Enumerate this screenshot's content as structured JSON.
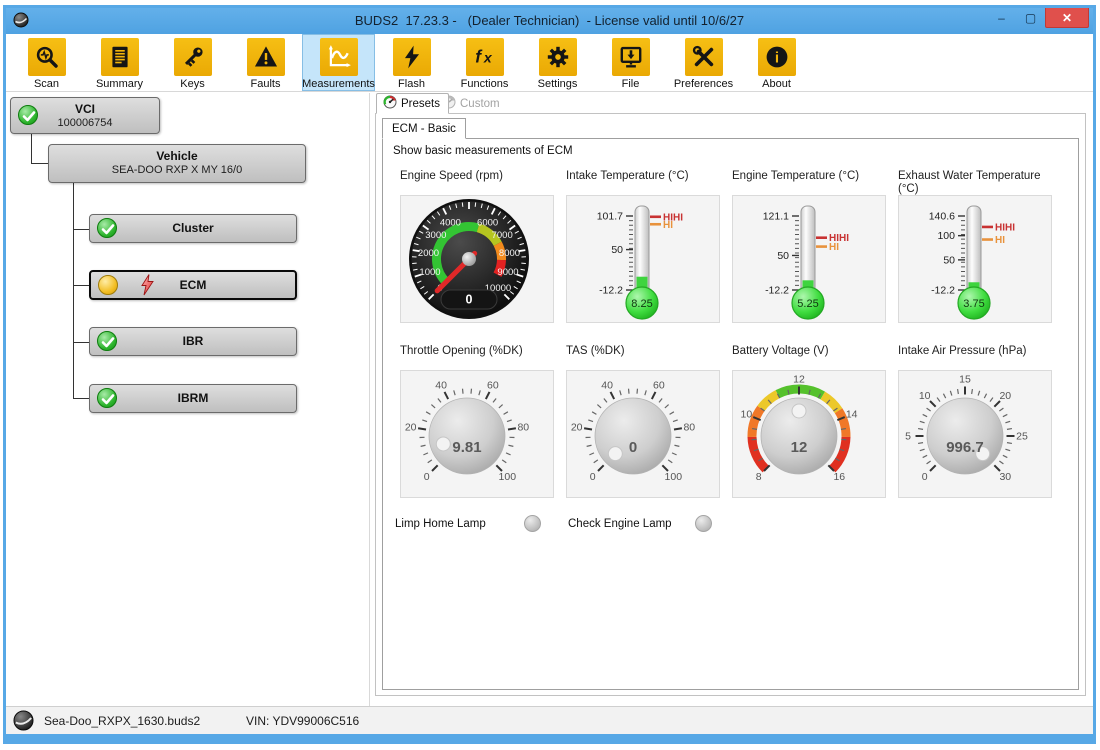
{
  "window": {
    "title": "BUDS2  17.23.3 -   (Dealer Technician)  - License valid until 10/6/27",
    "controls": {
      "minimize": "–",
      "maximize": "▢",
      "close": "✕"
    }
  },
  "toolbar": {
    "items": [
      {
        "label": "Scan",
        "icon": "scan-icon",
        "selected": false
      },
      {
        "label": "Summary",
        "icon": "summary-icon",
        "selected": false
      },
      {
        "label": "Keys",
        "icon": "keys-icon",
        "selected": false
      },
      {
        "label": "Faults",
        "icon": "faults-icon",
        "selected": false
      },
      {
        "label": "Measurements",
        "icon": "measurements-icon",
        "selected": true
      },
      {
        "label": "Flash",
        "icon": "flash-icon",
        "selected": false
      },
      {
        "label": "Functions",
        "icon": "functions-icon",
        "selected": false
      },
      {
        "label": "Settings",
        "icon": "settings-icon",
        "selected": false
      },
      {
        "label": "File",
        "icon": "file-icon",
        "selected": false
      },
      {
        "label": "Preferences",
        "icon": "preferences-icon",
        "selected": false
      },
      {
        "label": "About",
        "icon": "about-icon",
        "selected": false
      }
    ]
  },
  "tree": {
    "nodes": [
      {
        "title": "VCI",
        "subtitle": "100006754",
        "status": "ok"
      },
      {
        "title": "Vehicle",
        "subtitle": "SEA-DOO RXP X MY 16/0",
        "status": "none"
      },
      {
        "title": "Cluster",
        "status": "ok"
      },
      {
        "title": "ECM",
        "status": "warning-fault",
        "selected": true
      },
      {
        "title": "IBR",
        "status": "ok"
      },
      {
        "title": "IBRM",
        "status": "ok"
      }
    ]
  },
  "content": {
    "preset_tab": "Presets",
    "custom_tab": "Custom",
    "page_tab": "ECM - Basic",
    "description": "Show basic measurements of ECM",
    "lamps": [
      {
        "label": "Limp Home Lamp",
        "on": false
      },
      {
        "label": "Check Engine Lamp",
        "on": false
      }
    ]
  },
  "statusbar": {
    "file": "Sea-Doo_RXPX_1630.buds2",
    "vin": "VIN: YDV99006C516"
  },
  "colors": {
    "title_blue": "#57a8e6",
    "toolbar_yellow": "#f2b50a",
    "ok_green": "#2eb52e",
    "warn_yellow": "#f2bd22",
    "hihi_red": "#c83232",
    "hi_orange": "#e8923c"
  },
  "chart_data": [
    {
      "type": "dial",
      "title": "Engine Speed (rpm)",
      "value": 0,
      "display": "0",
      "min": 0,
      "max": 10000,
      "major_step": 1000,
      "minor_step": 250,
      "labels": [
        0,
        1000,
        2000,
        3000,
        4000,
        6000,
        7000,
        8000,
        9000,
        10000
      ],
      "arc": [
        {
          "from": 0,
          "to": 5600,
          "color": "#33c433"
        },
        {
          "from": 5600,
          "to": 7300,
          "color": "#b5c520"
        },
        {
          "from": 7300,
          "to": 8400,
          "color": "#f28a1c"
        },
        {
          "from": 8400,
          "to": 9400,
          "color": "#e32222"
        }
      ]
    },
    {
      "type": "thermometer",
      "title": "Intake Temperature (°C)",
      "value": 8.25,
      "display": "8.25",
      "min": -12.2,
      "max": 101.7,
      "labels": [
        {
          "v": 101.7,
          "t": "101.7"
        },
        {
          "v": 50,
          "t": "50"
        },
        {
          "v": -12.2,
          "t": "-12.2"
        }
      ],
      "markers": [
        {
          "label": "HIHI",
          "value": 100.5,
          "color": "#c83232"
        },
        {
          "label": "HI",
          "value": 89,
          "color": "#e8923c"
        }
      ]
    },
    {
      "type": "thermometer",
      "title": "Engine Temperature (°C)",
      "value": 5.25,
      "display": "5.25",
      "min": -12.2,
      "max": 121.1,
      "labels": [
        {
          "v": 121.1,
          "t": "121.1"
        },
        {
          "v": 50,
          "t": "50"
        },
        {
          "v": -12.2,
          "t": "-12.2"
        }
      ],
      "markers": [
        {
          "label": "HIHI",
          "value": 82,
          "color": "#c83232"
        },
        {
          "label": "HI",
          "value": 66,
          "color": "#e8923c"
        }
      ]
    },
    {
      "type": "thermometer",
      "title": "Exhaust Water Temperature (°C)",
      "value": 3.75,
      "display": "3.75",
      "min": -12.2,
      "max": 140.6,
      "labels": [
        {
          "v": 140.6,
          "t": "140.6"
        },
        {
          "v": 100,
          "t": "100"
        },
        {
          "v": 50,
          "t": "50"
        },
        {
          "v": -12.2,
          "t": "-12.2"
        }
      ],
      "markers": [
        {
          "label": "HIHI",
          "value": 118,
          "color": "#c83232"
        },
        {
          "label": "HI",
          "value": 92,
          "color": "#e8923c"
        }
      ]
    },
    {
      "type": "knob",
      "title": "Throttle Opening (%DK)",
      "value": 9.81,
      "display": "9.81",
      "min": 0,
      "max": 100,
      "major_ticks": [
        0,
        20,
        40,
        60,
        80,
        100
      ],
      "minor_step": 4
    },
    {
      "type": "knob",
      "title": "TAS (%DK)",
      "value": 0,
      "display": "0",
      "min": 0,
      "max": 100,
      "major_ticks": [
        0,
        20,
        40,
        60,
        80,
        100
      ],
      "minor_step": 4
    },
    {
      "type": "knob",
      "title": "Battery Voltage (V)",
      "value": 12,
      "display": "12",
      "min": 8,
      "max": 16,
      "major_ticks": [
        8,
        10,
        12,
        14,
        16
      ],
      "minor_step": 0.4,
      "band": [
        {
          "from": 8,
          "to": 9.3,
          "color": "#e03020"
        },
        {
          "from": 9.3,
          "to": 10.4,
          "color": "#f07828"
        },
        {
          "from": 10.4,
          "to": 11.2,
          "color": "#ecc829"
        },
        {
          "from": 11.2,
          "to": 12.9,
          "color": "#55c12c"
        },
        {
          "from": 12.9,
          "to": 13.7,
          "color": "#ecc829"
        },
        {
          "from": 13.7,
          "to": 14.7,
          "color": "#f07828"
        },
        {
          "from": 14.7,
          "to": 16,
          "color": "#e03020"
        }
      ]
    },
    {
      "type": "knob",
      "title": "Intake Air Pressure (hPa)",
      "value": 996.7,
      "display": "996.7",
      "min": 0,
      "max": 30,
      "major_ticks": [
        0,
        5,
        10,
        15,
        20,
        25,
        30
      ],
      "minor_step": 1
    }
  ]
}
